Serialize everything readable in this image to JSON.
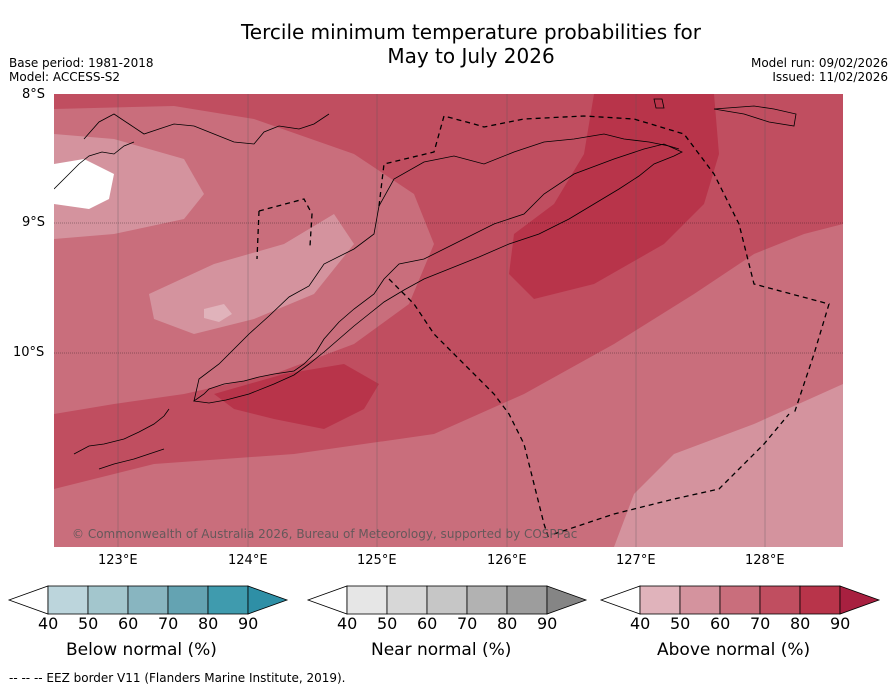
{
  "header": {
    "title_line1": "Tercile minimum temperature probabilities for",
    "title_line2": "May to July 2026",
    "base_period": "Base period: 1981-2018",
    "model": "Model: ACCESS-S2",
    "model_run": "Model run: 09/02/2026",
    "issued": "Issued: 11/02/2026"
  },
  "axes": {
    "lat_labels": [
      "8°S",
      "9°S",
      "10°S"
    ],
    "lon_labels": [
      "123°E",
      "124°E",
      "125°E",
      "126°E",
      "127°E",
      "128°E"
    ]
  },
  "map": {
    "extent": {
      "lon_min": 122.5,
      "lon_max": 128.6,
      "lat_min": -11.5,
      "lat_max": -8.0
    },
    "copyright": "© Commonwealth of Australia 2026, Bureau of Meteorology, supported by COSPPac"
  },
  "colorbars": [
    {
      "label": "Below normal (%)",
      "ticks": [
        "40",
        "50",
        "60",
        "70",
        "80",
        "90"
      ],
      "colors": [
        "#ffffff",
        "#bcd5dc",
        "#a3c6cd",
        "#88b5c0",
        "#64a3b2",
        "#3f9bae",
        "#2e8fa6"
      ]
    },
    {
      "label": "Near normal (%)",
      "ticks": [
        "40",
        "50",
        "60",
        "70",
        "80",
        "90"
      ],
      "colors": [
        "#ffffff",
        "#e6e6e6",
        "#d7d7d7",
        "#c6c6c6",
        "#b2b2b2",
        "#9d9d9d",
        "#858585"
      ]
    },
    {
      "label": "Above normal (%)",
      "ticks": [
        "40",
        "50",
        "60",
        "70",
        "80",
        "90"
      ],
      "colors": [
        "#ffffff",
        "#e0b3bb",
        "#d4939e",
        "#c96e7c",
        "#c04e60",
        "#b8344a",
        "#a82040"
      ]
    }
  ],
  "footer": "--  --  -- EEZ border V11 (Flanders Marine Institute, 2019)."
}
